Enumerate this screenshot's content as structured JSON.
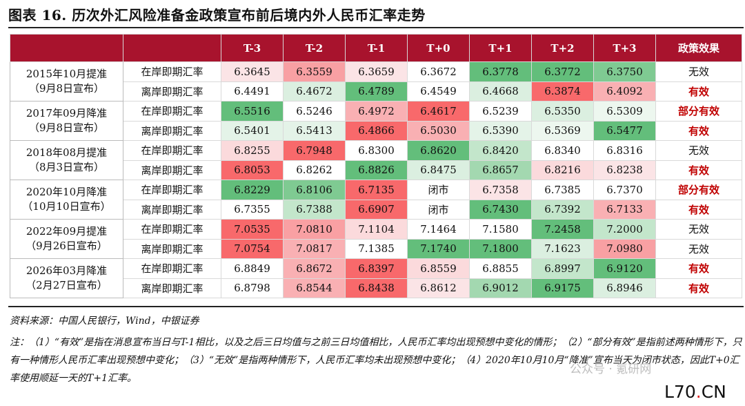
{
  "title": "图表 16. 历次外汇风险准备金政策宣布前后境内外人民币汇率走势",
  "headers": [
    "T-3",
    "T-2",
    "T-1",
    "T+0",
    "T+1",
    "T+2",
    "T+3",
    "政策效果"
  ],
  "rows": [
    {
      "event": [
        "2015年10月提准",
        "（9月8日宣布）"
      ],
      "type": "在岸即期汇率",
      "values": [
        "6.3645",
        "6.3559",
        "6.3659",
        "6.3672",
        "6.3778",
        "6.3772",
        "6.3750"
      ],
      "colors": [
        "#fbe4e6",
        "#f8a0a3",
        "#fbe4e6",
        "#ffffff",
        "#63be7b",
        "#63be7b",
        "#7fca92"
      ],
      "effect": "无效",
      "effect_red": false
    },
    {
      "event": null,
      "type": "离岸即期汇率",
      "values": [
        "6.4491",
        "6.4672",
        "6.4789",
        "6.4549",
        "6.4668",
        "6.3874",
        "6.4092"
      ],
      "colors": [
        "#ffffff",
        "#dbefe0",
        "#63be7b",
        "#ffffff",
        "#dbefe0",
        "#f8696b",
        "#f9b0b3"
      ],
      "effect": "有效",
      "effect_red": true
    },
    {
      "event": [
        "2017年09月降准",
        "（9月8日宣布）"
      ],
      "type": "在岸即期汇率",
      "values": [
        "6.5516",
        "6.5246",
        "6.4972",
        "6.4617",
        "6.5239",
        "6.5350",
        "6.5309"
      ],
      "colors": [
        "#63be7b",
        "#ffffff",
        "#f9b0b3",
        "#f8696b",
        "#ffffff",
        "#dbefe0",
        "#edf7ef"
      ],
      "effect": "部分有效",
      "effect_red": true
    },
    {
      "event": null,
      "type": "离岸即期汇率",
      "values": [
        "6.5401",
        "6.5413",
        "6.4866",
        "6.5030",
        "6.5390",
        "6.5369",
        "6.5477"
      ],
      "colors": [
        "#e4f3e8",
        "#e4f3e8",
        "#f8696b",
        "#f9b0b3",
        "#e4f3e8",
        "#edf7ef",
        "#63be7b"
      ],
      "effect": "有效",
      "effect_red": true
    },
    {
      "event": [
        "2018年08月提准",
        "（8月3日宣布）"
      ],
      "type": "在岸即期汇率",
      "values": [
        "6.8255",
        "6.7948",
        "6.8300",
        "6.8620",
        "6.8420",
        "6.8340",
        "6.8316"
      ],
      "colors": [
        "#fbdadc",
        "#f8696b",
        "#ffffff",
        "#63be7b",
        "#c3e6cb",
        "#ffffff",
        "#ffffff"
      ],
      "effect": "无效",
      "effect_red": false
    },
    {
      "event": null,
      "type": "离岸即期汇率",
      "values": [
        "6.8053",
        "6.8262",
        "6.8826",
        "6.8475",
        "6.8657",
        "6.8216",
        "6.8238"
      ],
      "colors": [
        "#f8696b",
        "#ffffff",
        "#63be7b",
        "#dbefe0",
        "#a3d8b0",
        "#fbdadc",
        "#fbe4e6"
      ],
      "effect": "有效",
      "effect_red": true
    },
    {
      "event": [
        "2020年10月降准",
        "（10月10日宣布）"
      ],
      "type": "在岸即期汇率",
      "values": [
        "6.8229",
        "6.8106",
        "6.7135",
        "闭市",
        "6.7358",
        "6.7385",
        "6.7370"
      ],
      "colors": [
        "#63be7b",
        "#7fca92",
        "#f8696b",
        "#ffffff",
        "#fbe4e6",
        "#ffffff",
        "#ffffff"
      ],
      "effect": "部分有效",
      "effect_red": true
    },
    {
      "event": null,
      "type": "离岸即期汇率",
      "values": [
        "6.7355",
        "6.7388",
        "6.6907",
        "闭市",
        "6.7430",
        "6.7392",
        "6.7133"
      ],
      "colors": [
        "#ffffff",
        "#c3e6cb",
        "#f8696b",
        "#ffffff",
        "#63be7b",
        "#c3e6cb",
        "#f9b0b3"
      ],
      "effect": "有效",
      "effect_red": true
    },
    {
      "event": [
        "2022年09月提准",
        "（9月26日宣布）"
      ],
      "type": "在岸即期汇率",
      "values": [
        "7.0535",
        "7.0810",
        "7.1104",
        "7.1464",
        "7.1580",
        "7.2458",
        "7.2000"
      ],
      "colors": [
        "#f8696b",
        "#f9a0a3",
        "#fbdadc",
        "#ffffff",
        "#ffffff",
        "#63be7b",
        "#c3e6cb"
      ],
      "effect": "无效",
      "effect_red": false
    },
    {
      "event": null,
      "type": "离岸即期汇率",
      "values": [
        "7.0754",
        "7.0817",
        "7.1385",
        "7.1740",
        "7.1800",
        "7.1623",
        "7.0980"
      ],
      "colors": [
        "#f8696b",
        "#f9b0b3",
        "#ffffff",
        "#63be7b",
        "#63be7b",
        "#dbefe0",
        "#f8a0a3"
      ],
      "effect": "无效",
      "effect_red": false
    },
    {
      "event": [
        "2026年03月降准",
        "（2月27日宣布）"
      ],
      "type": "在岸即期汇率",
      "values": [
        "6.8849",
        "6.8672",
        "6.8397",
        "6.8559",
        "6.8855",
        "6.8997",
        "6.9120"
      ],
      "colors": [
        "#ffffff",
        "#f9b0b3",
        "#f8696b",
        "#fbdadc",
        "#ffffff",
        "#c3e6cb",
        "#63be7b"
      ],
      "effect": "有效",
      "effect_red": true
    },
    {
      "event": null,
      "type": "离岸即期汇率",
      "values": [
        "6.8798",
        "6.8544",
        "6.8438",
        "6.8612",
        "6.9012",
        "6.9175",
        "6.8946"
      ],
      "colors": [
        "#ffffff",
        "#f9b0b3",
        "#f8696b",
        "#fbe4e6",
        "#a3d8b0",
        "#63be7b",
        "#dbefe0"
      ],
      "effect": "有效",
      "effect_red": true
    }
  ],
  "source": "资料来源：中国人民银行，Wind，中银证券",
  "note": "注：（1）“有效”是指在消息宣布当日与T-1相比，以及之后三日均值与之前三日均值相比，人民币汇率均出现预想中变化的情形；（2）“部分有效”是指前述两种情形下，只有一种情形人民币汇率出现预想中变化；（3）“无效”是指两种情形下，人民币汇率均未出现预想中变化；（4）2020年10月10月“降准”宣布当天为闭市状态，因此T+0汇率使用顺延一天的T+1汇率。",
  "watermark": "公众号 · 氪研网",
  "logo_main": "L70",
  "logo_dot": ".",
  "logo_tail": "CN"
}
